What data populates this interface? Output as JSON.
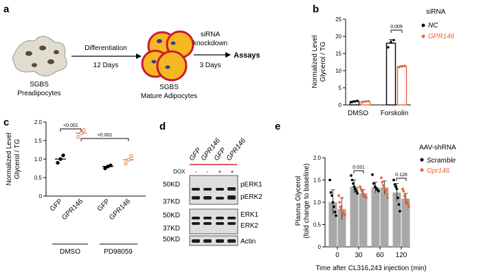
{
  "panel_labels": {
    "a": "a",
    "b": "b",
    "c": "c",
    "d": "d",
    "e": "e"
  },
  "panel_a": {
    "preadipocytes": [
      "SGBS",
      "Preadipocytes"
    ],
    "step1": {
      "label": "Differentiation",
      "duration": "12 Days"
    },
    "mature": [
      "SGBS",
      "Mature Adipocytes"
    ],
    "step2": {
      "label": [
        "siRNA",
        "knockdown"
      ],
      "duration": "3 Days"
    },
    "assays": "Assays"
  },
  "chart_data": [
    {
      "panel": "b",
      "type": "bar",
      "categories": [
        "DMSO",
        "Forskolin"
      ],
      "series": [
        {
          "name": "NC",
          "color": "#000000",
          "values": [
            1.0,
            18.0
          ],
          "points": [
            [
              0.8,
              1.0,
              1.2
            ],
            [
              16.8,
              18.3,
              18.9
            ]
          ],
          "error": [
            0.2,
            1.0
          ]
        },
        {
          "name": "GPR146",
          "color": "#e8643c",
          "values": [
            1.0,
            11.2
          ],
          "points": [
            [
              0.8,
              1.0,
              1.1
            ],
            [
              11.0,
              11.2,
              11.4
            ]
          ],
          "error": [
            0.15,
            0.3
          ]
        }
      ],
      "ylabel": [
        "Normalized Level",
        "Glycerol / TG"
      ],
      "ylim": [
        0,
        25
      ],
      "yticks": [
        "0",
        "5",
        "10",
        "15",
        "20",
        "25"
      ],
      "annotations": [
        {
          "text": "0.009"
        }
      ],
      "legend": {
        "title": "siRNA",
        "entries": [
          "NC",
          "GPR146"
        ]
      }
    },
    {
      "panel": "c",
      "type": "scatter",
      "categories": [
        "GFP",
        "GPR146",
        "GFP",
        "GPR146"
      ],
      "groups": [
        {
          "label": "DMSO"
        },
        {
          "label": "PD98059"
        }
      ],
      "series": [
        {
          "name": "",
          "color": "#000000",
          "values": [
            1.0,
            null,
            0.8,
            null
          ],
          "points": [
            [
              0.9,
              1.0,
              1.1
            ],
            null,
            [
              0.75,
              0.8,
              0.83
            ],
            null
          ]
        },
        {
          "name": "",
          "color": "#e8643c",
          "values": [
            null,
            1.7,
            null,
            0.98
          ],
          "points": [
            null,
            [
              1.6,
              1.7,
              1.78
            ],
            null,
            [
              0.88,
              0.98,
              1.08
            ]
          ]
        }
      ],
      "ylabel": [
        "Normalized Level",
        "Glycerol / TG"
      ],
      "ylim": [
        0,
        2.0
      ],
      "yticks": [
        "0",
        "0.5",
        "1.0",
        "1.5",
        "2.0"
      ],
      "annotations": [
        {
          "text": "<0.001"
        },
        {
          "text": "<0.001"
        }
      ]
    },
    {
      "panel": "e",
      "type": "bar",
      "categories": [
        "0",
        "30",
        "60",
        "120"
      ],
      "series": [
        {
          "name": "Scramble",
          "color": "#000000",
          "values": [
            1.0,
            1.35,
            1.33,
            1.22
          ],
          "error": [
            0.28,
            0.15,
            0.12,
            0.2
          ],
          "points": [
            [
              1.5,
              1.22,
              1.15,
              1.0,
              0.9,
              0.78,
              0.7
            ],
            [
              1.6,
              1.5,
              1.42,
              1.35,
              1.3,
              1.25,
              1.2
            ],
            [
              1.62,
              1.42,
              1.35,
              1.32,
              1.28,
              1.25
            ],
            [
              1.5,
              1.4,
              1.35,
              1.3,
              1.1,
              0.95,
              0.8
            ]
          ]
        },
        {
          "name": "Gpr146",
          "color": "#e8643c",
          "values": [
            0.85,
            1.2,
            1.33,
            1.08
          ],
          "error": [
            0.25,
            0.08,
            0.15,
            0.12
          ],
          "points": [
            [
              1.15,
              1.0,
              0.9,
              0.85,
              0.8,
              0.78,
              0.75,
              0.7,
              0.72
            ],
            [
              1.35,
              1.3,
              1.25,
              1.2,
              1.18,
              1.15,
              1.12,
              1.1
            ],
            [
              1.55,
              1.45,
              1.38,
              1.32,
              1.3,
              1.25,
              1.18,
              1.1
            ],
            [
              1.3,
              1.25,
              1.15,
              1.1,
              1.05,
              1.0,
              0.95,
              0.9
            ]
          ]
        }
      ],
      "xlabel": "Time after CL316,243 injection (min)",
      "ylabel": [
        "Plasma Glycerol",
        "(fold change to baseline)"
      ],
      "ylim": [
        0,
        2.0
      ],
      "yticks": [
        "0",
        "0.5",
        "1.0",
        "1.5",
        "2.0"
      ],
      "annotations": [
        {
          "text": "0.031"
        },
        {
          "text": "0.128"
        }
      ],
      "legend": {
        "title": "AAV-shRNA",
        "entries": [
          "Scramble",
          "Gpr146"
        ]
      }
    }
  ],
  "panel_d": {
    "lanes": [
      "GFP",
      "GPR146",
      "GFP",
      "GPR146"
    ],
    "dox_label": "DOX",
    "dox": [
      "-",
      "-",
      "+",
      "+"
    ],
    "size_markers": [
      "50KD",
      "37KD",
      "50KD",
      "37KD",
      "50KD"
    ],
    "bands": [
      "pERK1",
      "pERK2",
      "ERK1",
      "ERK2",
      "Actin"
    ]
  },
  "colors": {
    "orange": "#e8643c",
    "black": "#000000",
    "bar_gray": "#a8a8a8"
  }
}
